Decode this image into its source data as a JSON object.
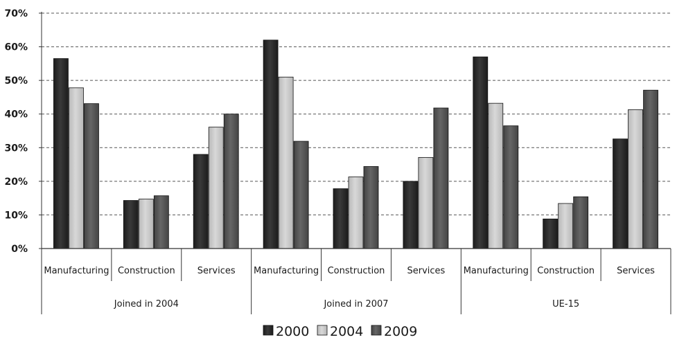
{
  "chart_data": {
    "type": "bar",
    "groups": [
      "Joined in 2004",
      "Joined in 2007",
      "UE-15"
    ],
    "categories": [
      "Manufacturing",
      "Construction",
      "Services"
    ],
    "series": [
      {
        "name": "2000",
        "color": "#1c1c1c",
        "values": [
          [
            56.5,
            14.3,
            28.0
          ],
          [
            62.0,
            17.8,
            20.0
          ],
          [
            57.0,
            8.8,
            32.6
          ]
        ]
      },
      {
        "name": "2004",
        "color": "#b8b8b8",
        "values": [
          [
            47.8,
            14.7,
            36.1
          ],
          [
            51.0,
            21.3,
            27.1
          ],
          [
            43.2,
            13.4,
            41.3
          ]
        ]
      },
      {
        "name": "2009",
        "color": "#444444",
        "values": [
          [
            43.1,
            15.7,
            40.0
          ],
          [
            31.9,
            24.4,
            41.8
          ],
          [
            36.5,
            15.4,
            47.1
          ]
        ]
      }
    ],
    "y_ticks": [
      "0%",
      "10%",
      "20%",
      "30%",
      "40%",
      "50%",
      "60%",
      "70%"
    ],
    "ylim": [
      0,
      70
    ],
    "grid": true,
    "legend_position": "bottom"
  }
}
